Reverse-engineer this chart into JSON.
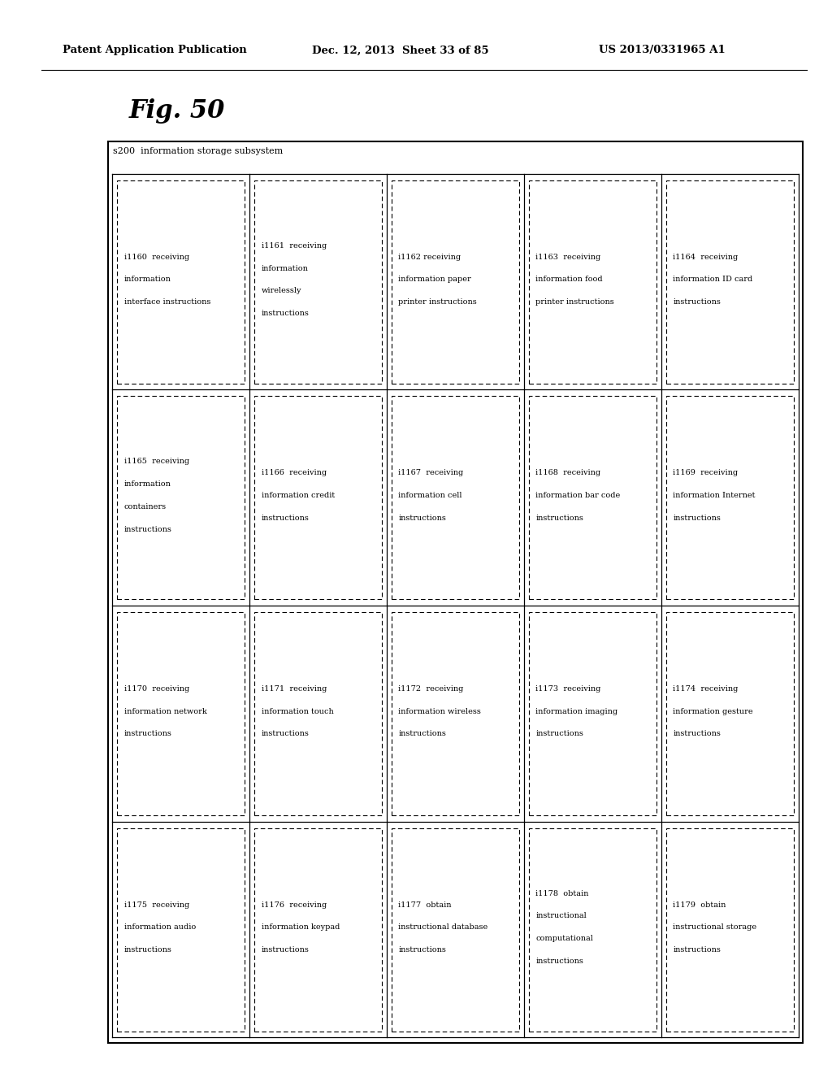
{
  "header_left": "Patent Application Publication",
  "header_mid": "Dec. 12, 2013  Sheet 33 of 85",
  "header_right": "US 2013/0331965 A1",
  "fig_label": "Fig. 50",
  "outer_label": "s200  information storage subsystem",
  "cells": [
    {
      "row": 0,
      "col": 0,
      "lines": [
        "i1160  receiving",
        "information",
        "interface instructions"
      ]
    },
    {
      "row": 0,
      "col": 1,
      "lines": [
        "i1161  receiving",
        "information",
        "wirelessly",
        "instructions"
      ]
    },
    {
      "row": 0,
      "col": 2,
      "lines": [
        "i1162 receiving",
        "information paper",
        "printer instructions"
      ]
    },
    {
      "row": 0,
      "col": 3,
      "lines": [
        "i1163  receiving",
        "information food",
        "printer instructions"
      ]
    },
    {
      "row": 0,
      "col": 4,
      "lines": [
        "i1164  receiving",
        "information ID card",
        "instructions"
      ]
    },
    {
      "row": 1,
      "col": 0,
      "lines": [
        "i1165  receiving",
        "information",
        "containers",
        "instructions"
      ]
    },
    {
      "row": 1,
      "col": 1,
      "lines": [
        "i1166  receiving",
        "information credit",
        "instructions"
      ]
    },
    {
      "row": 1,
      "col": 2,
      "lines": [
        "i1167  receiving",
        "information cell",
        "instructions"
      ]
    },
    {
      "row": 1,
      "col": 3,
      "lines": [
        "i1168  receiving",
        "information bar code",
        "instructions"
      ]
    },
    {
      "row": 1,
      "col": 4,
      "lines": [
        "i1169  receiving",
        "information Internet",
        "instructions"
      ]
    },
    {
      "row": 2,
      "col": 0,
      "lines": [
        "i1170  receiving",
        "information network",
        "instructions"
      ]
    },
    {
      "row": 2,
      "col": 1,
      "lines": [
        "i1171  receiving",
        "information touch",
        "instructions"
      ]
    },
    {
      "row": 2,
      "col": 2,
      "lines": [
        "i1172  receiving",
        "information wireless",
        "instructions"
      ]
    },
    {
      "row": 2,
      "col": 3,
      "lines": [
        "i1173  receiving",
        "information imaging",
        "instructions"
      ]
    },
    {
      "row": 2,
      "col": 4,
      "lines": [
        "i1174  receiving",
        "information gesture",
        "instructions"
      ]
    },
    {
      "row": 3,
      "col": 0,
      "lines": [
        "i1175  receiving",
        "information audio",
        "instructions"
      ]
    },
    {
      "row": 3,
      "col": 1,
      "lines": [
        "i1176  receiving",
        "information keypad",
        "instructions"
      ]
    },
    {
      "row": 3,
      "col": 2,
      "lines": [
        "i1177  obtain",
        "instructional database",
        "instructions"
      ]
    },
    {
      "row": 3,
      "col": 3,
      "lines": [
        "i1178  obtain",
        "instructional",
        "computational",
        "instructions"
      ]
    },
    {
      "row": 3,
      "col": 4,
      "lines": [
        "i1179  obtain",
        "instructional storage",
        "instructions"
      ]
    }
  ],
  "num_rows": 4,
  "num_cols": 5,
  "bg_color": "#ffffff",
  "text_color": "#000000",
  "header_fontsize": 9.5,
  "fig_label_fontsize": 22,
  "cell_fontsize": 7.0,
  "label_fontsize": 8.0
}
